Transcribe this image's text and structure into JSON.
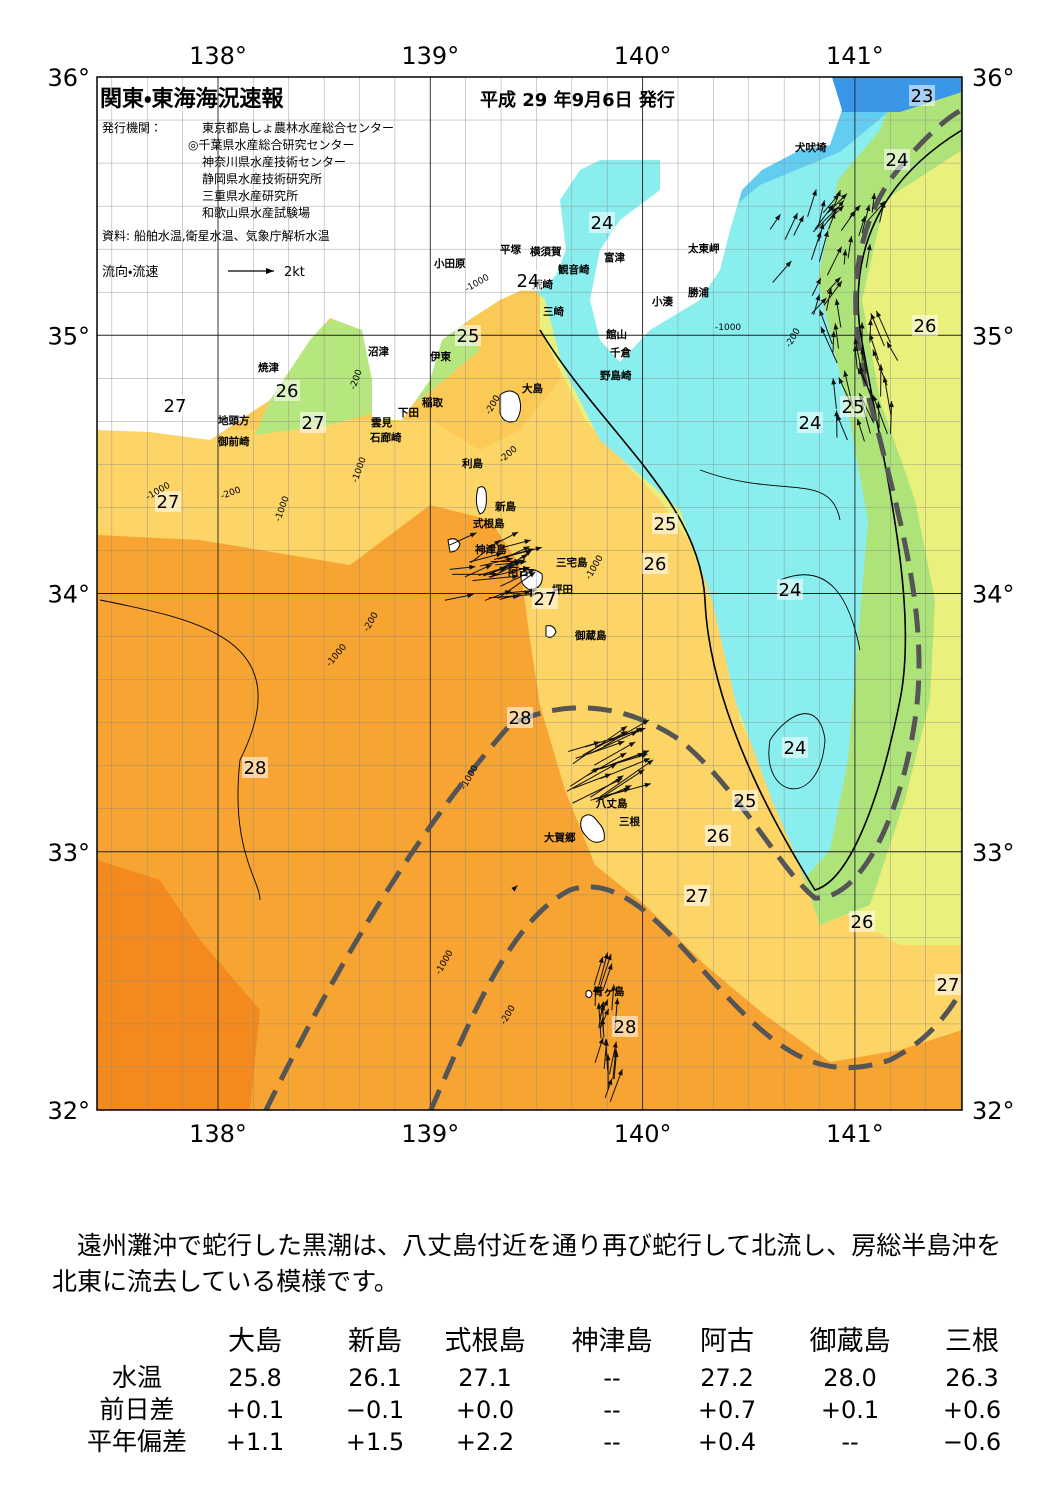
{
  "header": {
    "title": "関東・東海海況速報",
    "date": "平成 29 年9月6日 発行",
    "issuer_label": "発行機関：",
    "issuers": [
      "東京都島しょ農林水産総合センター",
      "◎千葉県水産総合研究センター",
      "神奈川県水産技術センター",
      "静岡県水産技術研究所",
      "三重県水産研究所",
      "和歌山県水産試験場"
    ],
    "source": "資料: 船舶水温,衛星水温、気象庁解析水温"
  },
  "legend": {
    "label": "流向・流速",
    "scale": "2kt"
  },
  "map": {
    "lon_ticks": [
      {
        "value": 138,
        "label": "138°"
      },
      {
        "value": 139,
        "label": "139°"
      },
      {
        "value": 140,
        "label": "140°"
      },
      {
        "value": 141,
        "label": "141°"
      }
    ],
    "lat_ticks": [
      {
        "value": 36,
        "label": "36°"
      },
      {
        "value": 35,
        "label": "35°"
      },
      {
        "value": 34,
        "label": "34°"
      },
      {
        "value": 33,
        "label": "33°"
      },
      {
        "value": 32,
        "label": "32°"
      }
    ],
    "place_names": [
      "犬吠埼",
      "太東岬",
      "勝浦",
      "小湊",
      "富津",
      "横須賀",
      "観音崎",
      "平塚",
      "小田原",
      "荒崎",
      "三崎",
      "館山",
      "千倉",
      "野島崎",
      "沼津",
      "伊東",
      "稲取",
      "下田",
      "雲見",
      "石廊崎",
      "焼津",
      "地頭方",
      "御前崎",
      "大島",
      "利島",
      "新島",
      "式根島",
      "神津島",
      "三宅島",
      "阿古",
      "坪田",
      "御蔵島",
      "八丈島",
      "三根",
      "大賀郷",
      "青ヶ島"
    ],
    "isotherm_labels": [
      23,
      24,
      24,
      24,
      25,
      26,
      27,
      26,
      27,
      25,
      24,
      27,
      25,
      26,
      27,
      24,
      28,
      28,
      24,
      25,
      26,
      27,
      26,
      27,
      28
    ],
    "depth_labels": [
      -1000,
      -200,
      -1000,
      -200,
      -200,
      -200,
      -1000,
      -1000,
      -200,
      -1000,
      -200,
      -1000,
      -1000,
      -1000,
      -1000,
      -200
    ]
  },
  "summary": "遠州灘沖で蛇行した黒潮は、八丈島付近を通り再び蛇行して北流し、房総半島沖を北東に流去している模様です。",
  "table": {
    "columns": [
      "大島",
      "新島",
      "式根島",
      "神津島",
      "阿古",
      "御蔵島",
      "三根"
    ],
    "rows": [
      {
        "label": "水温",
        "values": [
          "25.8",
          "26.1",
          "27.1",
          "--",
          "27.2",
          "28.0",
          "26.3"
        ]
      },
      {
        "label": "前日差",
        "values": [
          "+0.1",
          "−0.1",
          "+0.0",
          "--",
          "+0.7",
          "+0.1",
          "+0.6"
        ]
      },
      {
        "label": "平年偏差",
        "values": [
          "+1.1",
          "+1.5",
          "+2.2",
          "--",
          "+0.4",
          "--",
          "−0.6"
        ]
      }
    ]
  }
}
